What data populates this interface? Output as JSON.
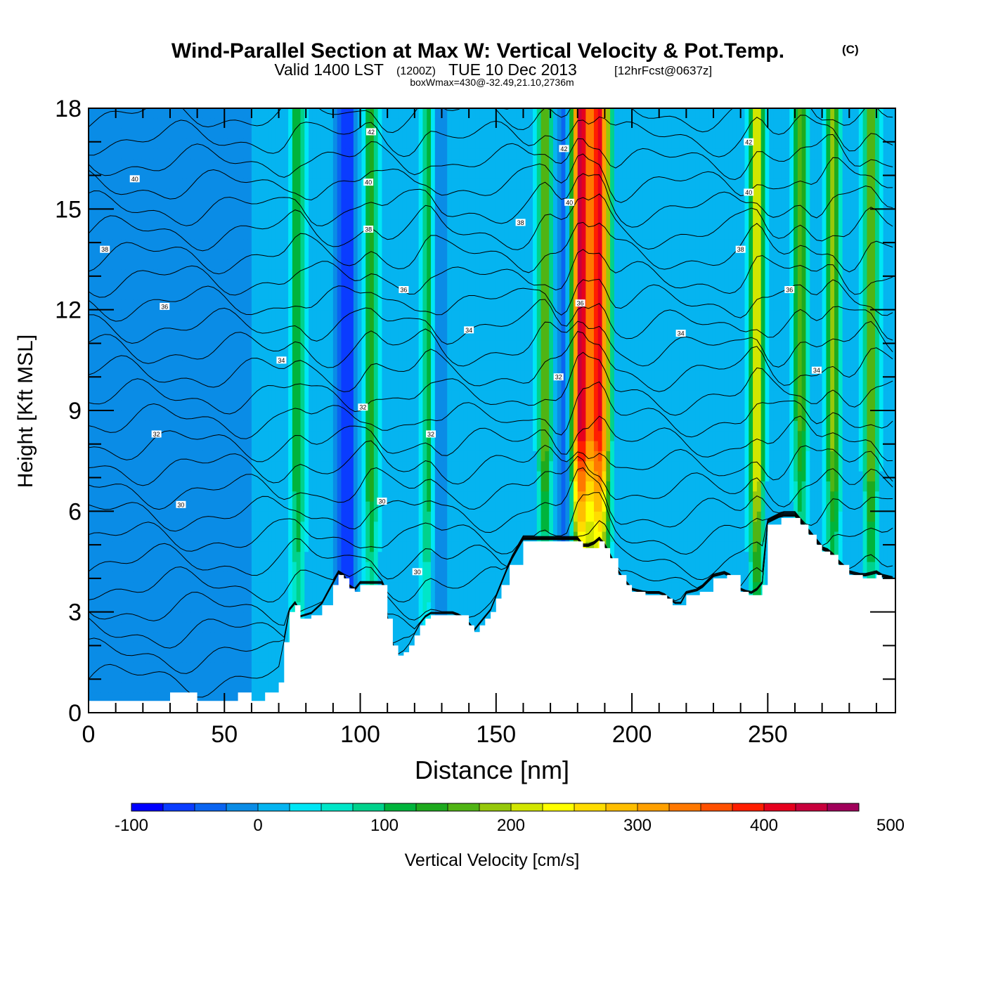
{
  "chart_data": {
    "type": "heatmap",
    "title": "Wind-Parallel Section at Max W: Vertical Velocity & Pot.Temp.",
    "title_mark": "(C)",
    "subtitle": {
      "valid": "Valid 1400 LST",
      "zulu": "(1200Z)",
      "date": "TUE 10 Dec 2013",
      "forecast": "[12hrFcst@0637z]"
    },
    "box_info": "boxWmax=430@-32.49,21.10,2736m",
    "xlabel": "Distance [nm]",
    "ylabel": "Height [Kft MSL]",
    "xlim": [
      0,
      297
    ],
    "ylim": [
      0,
      18
    ],
    "xticks": [
      0,
      50,
      100,
      150,
      200,
      250
    ],
    "yticks": [
      0,
      3,
      6,
      9,
      12,
      15,
      18
    ],
    "colorbar": {
      "label": "Vertical Velocity [cm/s]",
      "min": -100,
      "step": 25,
      "tick_values": [
        -100,
        0,
        100,
        200,
        300,
        400,
        500
      ],
      "colors": [
        "#0000ff",
        "#0a3cff",
        "#0a64f0",
        "#0a8ce6",
        "#05b4f0",
        "#00e6f5",
        "#00e6c8",
        "#00d28c",
        "#00b43c",
        "#1eaa1e",
        "#50b414",
        "#96c80a",
        "#d2e600",
        "#ffff00",
        "#ffdc00",
        "#ffbe00",
        "#ffa000",
        "#ff7800",
        "#ff5000",
        "#ff1e00",
        "#e6001e",
        "#c8003c",
        "#a0005a"
      ]
    },
    "terrain_kft": {
      "x": [
        0,
        5,
        10,
        20,
        28,
        30,
        35,
        40,
        45,
        50,
        55,
        60,
        65,
        70,
        72,
        74,
        76,
        78,
        82,
        86,
        90,
        92,
        94,
        96,
        98,
        100,
        104,
        108,
        110,
        112,
        114,
        116,
        118,
        120,
        122,
        124,
        126,
        130,
        135,
        140,
        142,
        144,
        146,
        148,
        150,
        152,
        155,
        160,
        165,
        170,
        175,
        180,
        182,
        185,
        188,
        190,
        192,
        195,
        198,
        200,
        205,
        210,
        213,
        215,
        218,
        220,
        225,
        230,
        235,
        240,
        243,
        245,
        248,
        250,
        255,
        260,
        262,
        265,
        268,
        270,
        273,
        276,
        280,
        285,
        290,
        292,
        297
      ],
      "height": [
        0.35,
        0.35,
        0.35,
        0.35,
        0.35,
        0.6,
        0.6,
        0.35,
        0.35,
        0.35,
        0.6,
        0.35,
        0.6,
        0.9,
        2.1,
        3.0,
        3.2,
        2.8,
        2.9,
        3.2,
        3.8,
        4.1,
        4.0,
        3.7,
        3.6,
        3.8,
        3.8,
        3.8,
        2.8,
        2.0,
        1.7,
        1.8,
        2.0,
        2.3,
        2.6,
        2.8,
        2.9,
        2.9,
        2.9,
        2.6,
        2.4,
        2.6,
        2.8,
        3.0,
        3.4,
        3.8,
        4.4,
        5.1,
        5.1,
        5.1,
        5.1,
        5.1,
        4.9,
        4.9,
        5.1,
        4.9,
        4.6,
        4.1,
        3.8,
        3.6,
        3.5,
        3.5,
        3.4,
        3.2,
        3.2,
        3.5,
        3.6,
        4.0,
        4.1,
        3.6,
        3.5,
        3.5,
        3.8,
        5.6,
        5.8,
        5.8,
        5.6,
        5.3,
        5.0,
        4.8,
        4.7,
        4.4,
        4.1,
        4.0,
        4.1,
        4.0,
        3.9
      ]
    },
    "updraft_cores": [
      {
        "x": 77,
        "w_cms": 120
      },
      {
        "x": 104,
        "w_cms": 140
      },
      {
        "x": 125,
        "w_cms": 140
      },
      {
        "x": 168,
        "w_cms": 180
      },
      {
        "x": 181,
        "w_cms": 430
      },
      {
        "x": 188,
        "w_cms": 400
      },
      {
        "x": 246,
        "w_cms": 220
      },
      {
        "x": 262,
        "w_cms": 160
      },
      {
        "x": 274,
        "w_cms": 180
      },
      {
        "x": 288,
        "w_cms": 170
      }
    ],
    "downdraft_cores": [
      {
        "x": 95,
        "w_cms": -80
      },
      {
        "x": 127,
        "w_cms": -50
      },
      {
        "x": 176,
        "w_cms": -70
      }
    ],
    "isentrope_labels": [
      {
        "x": 17,
        "y": 15.9,
        "text": "40"
      },
      {
        "x": 6,
        "y": 13.8,
        "text": "38"
      },
      {
        "x": 28,
        "y": 12.1,
        "text": "36"
      },
      {
        "x": 25,
        "y": 8.3,
        "text": "32"
      },
      {
        "x": 34,
        "y": 6.2,
        "text": "30"
      },
      {
        "x": 71,
        "y": 10.5,
        "text": "34"
      },
      {
        "x": 104,
        "y": 17.3,
        "text": "42"
      },
      {
        "x": 103,
        "y": 15.8,
        "text": "40"
      },
      {
        "x": 103,
        "y": 14.4,
        "text": "38"
      },
      {
        "x": 116,
        "y": 12.6,
        "text": "36"
      },
      {
        "x": 140,
        "y": 11.4,
        "text": "34"
      },
      {
        "x": 101,
        "y": 9.1,
        "text": "32"
      },
      {
        "x": 108,
        "y": 6.3,
        "text": "30"
      },
      {
        "x": 126,
        "y": 8.3,
        "text": "32"
      },
      {
        "x": 121,
        "y": 4.2,
        "text": "30"
      },
      {
        "x": 159,
        "y": 14.6,
        "text": "38"
      },
      {
        "x": 175,
        "y": 16.8,
        "text": "42"
      },
      {
        "x": 177,
        "y": 15.2,
        "text": "40"
      },
      {
        "x": 181,
        "y": 12.2,
        "text": "36"
      },
      {
        "x": 173,
        "y": 10.0,
        "text": "32"
      },
      {
        "x": 218,
        "y": 11.3,
        "text": "34"
      },
      {
        "x": 243,
        "y": 17.0,
        "text": "42"
      },
      {
        "x": 243,
        "y": 15.5,
        "text": "40"
      },
      {
        "x": 240,
        "y": 13.8,
        "text": "38"
      },
      {
        "x": 258,
        "y": 12.6,
        "text": "36"
      },
      {
        "x": 268,
        "y": 10.2,
        "text": "34"
      }
    ]
  }
}
